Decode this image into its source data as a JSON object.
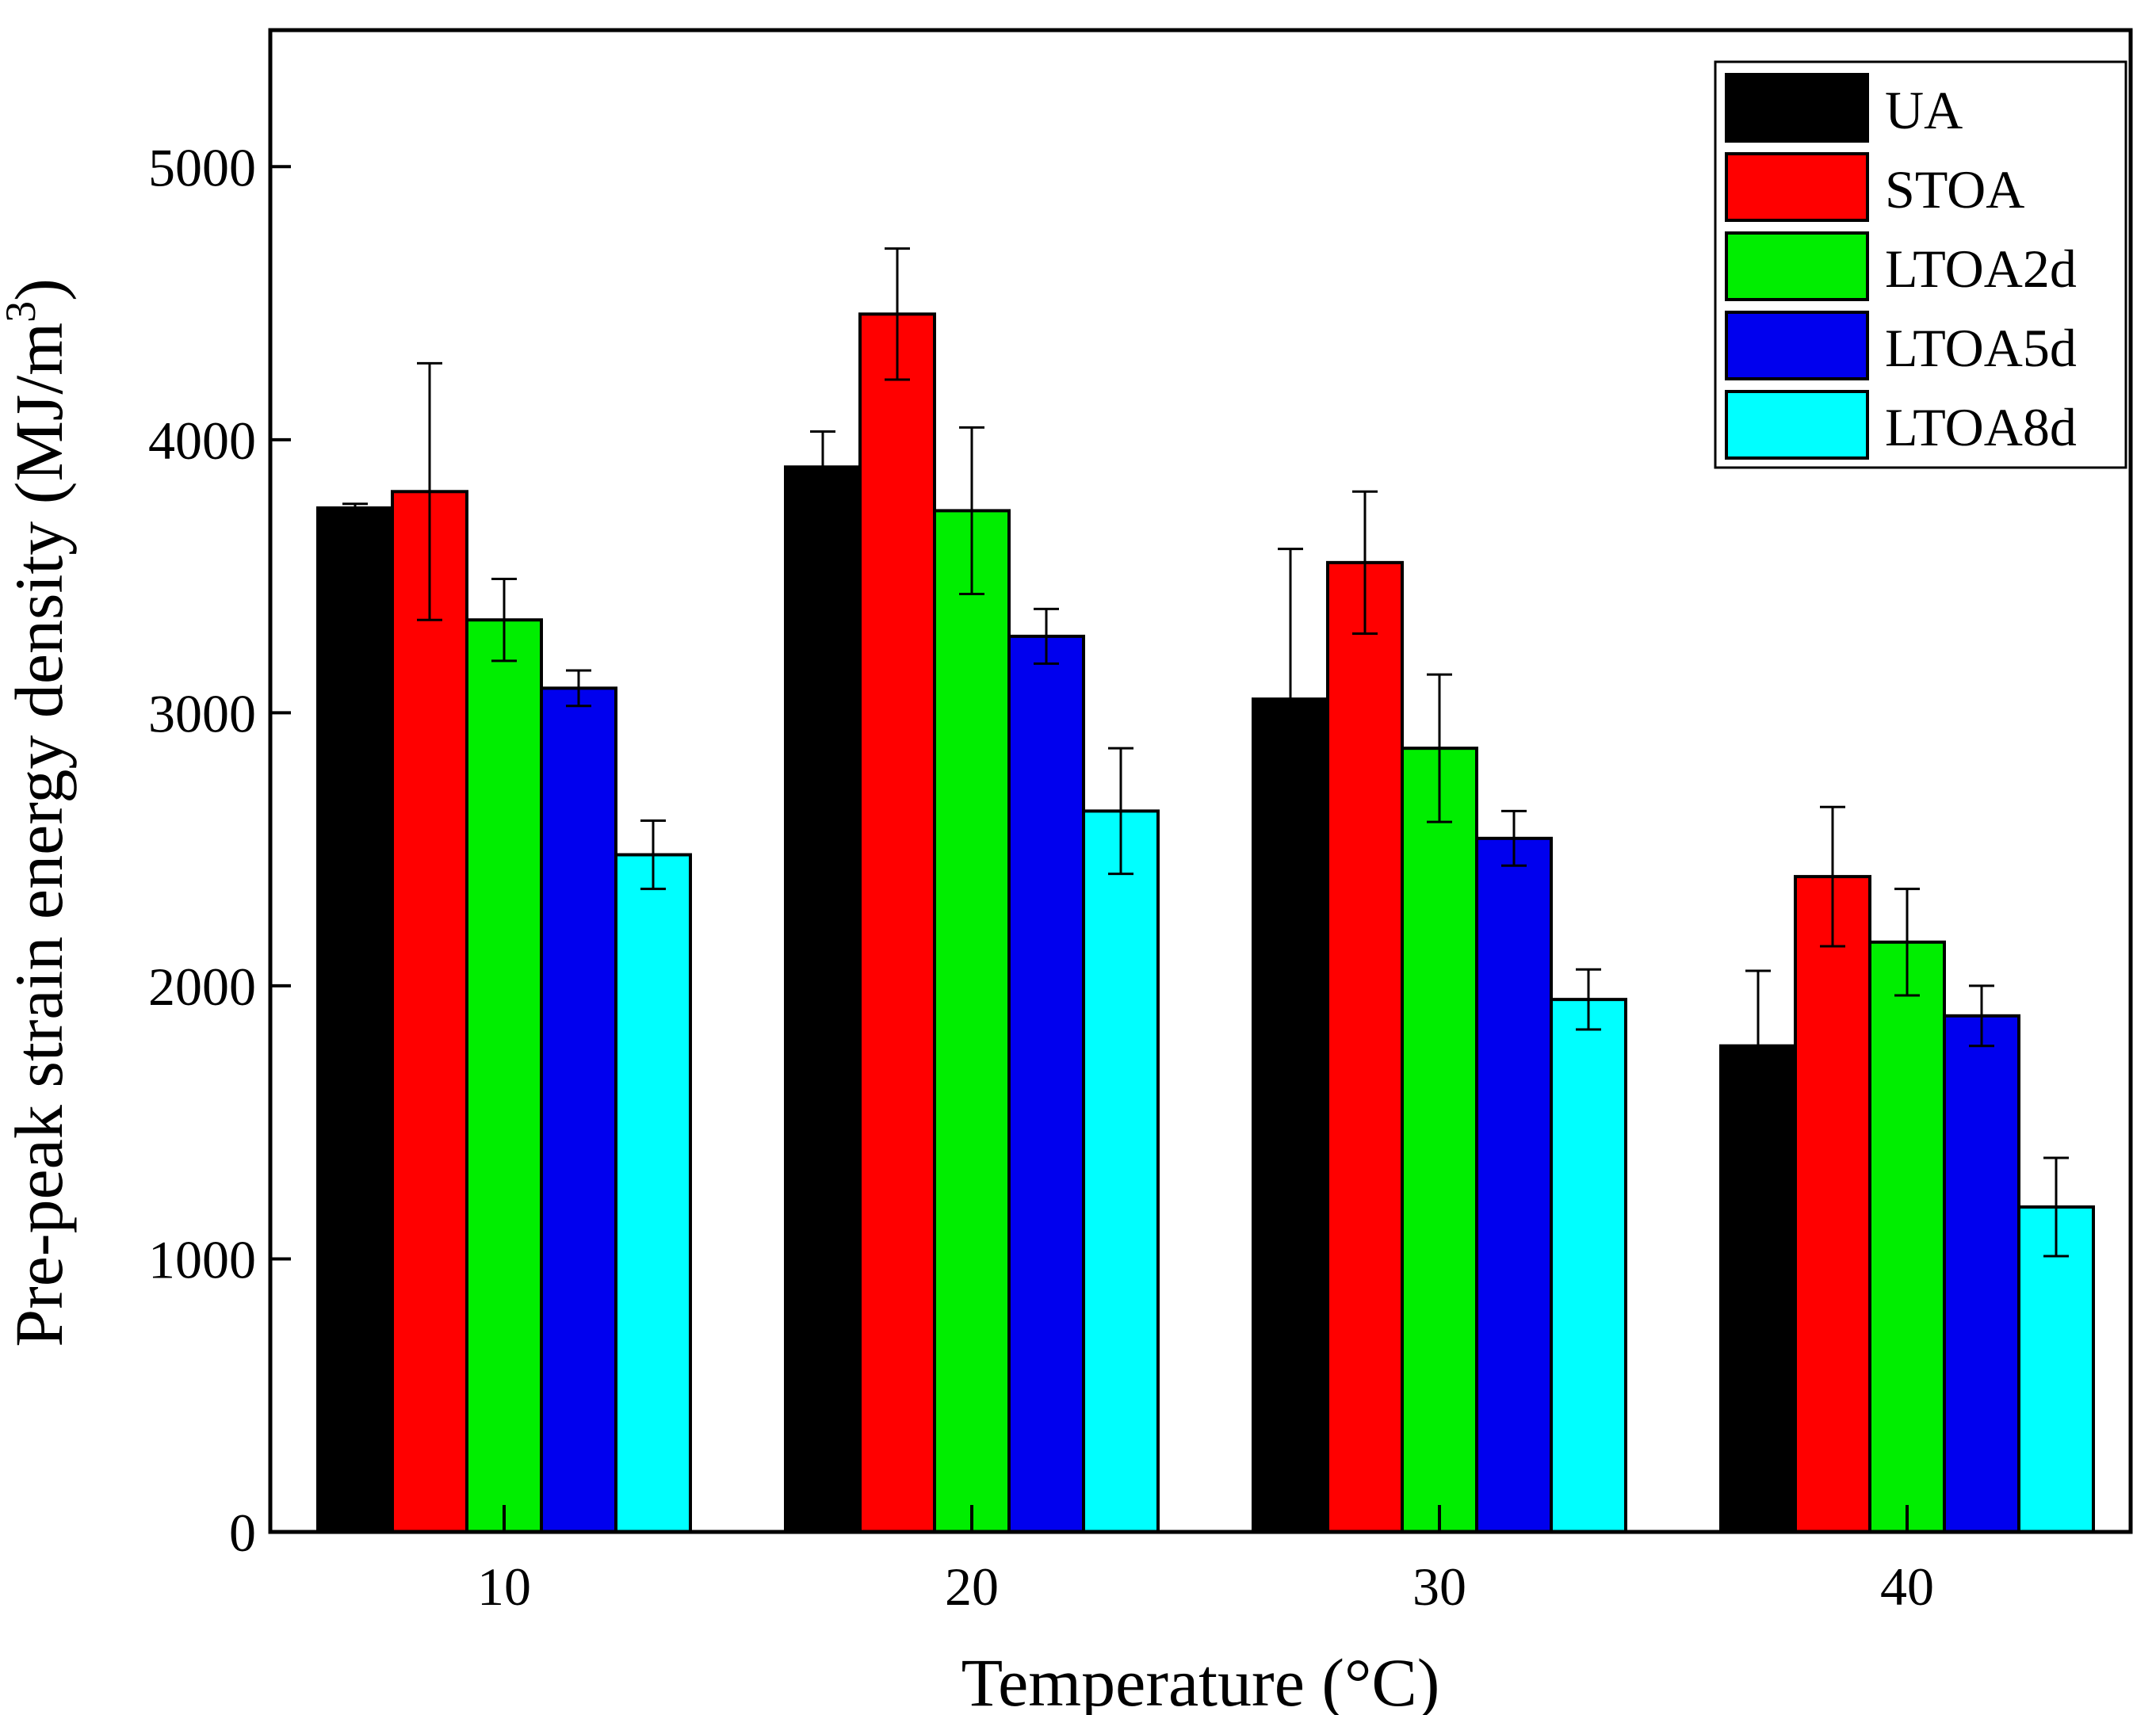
{
  "chart_data": {
    "type": "bar",
    "title": "",
    "xlabel": "Temperature (°C)",
    "ylabel": "Pre-peak strain energy density (MJ/m",
    "ylabel_superscript": "3",
    "ylabel_close": ")",
    "ylim": [
      0,
      5500
    ],
    "yticks": [
      0,
      1000,
      2000,
      3000,
      4000,
      5000
    ],
    "ytick_labels": [
      "0",
      "1000",
      "2000",
      "3000",
      "4000",
      "5000"
    ],
    "categories": [
      "10",
      "20",
      "30",
      "40"
    ],
    "legend_position": "top-right",
    "series": [
      {
        "name": "UA",
        "color": "#000000",
        "values": [
          3750,
          3900,
          3050,
          1780
        ],
        "errors": [
          15,
          130,
          550,
          275
        ]
      },
      {
        "name": "STOA",
        "color": "#ff0000",
        "values": [
          3810,
          4460,
          3550,
          2400
        ],
        "errors": [
          470,
          240,
          260,
          255
        ]
      },
      {
        "name": "LTOA2d",
        "color": "#00ee00",
        "values": [
          3340,
          3740,
          2870,
          2160
        ],
        "errors": [
          150,
          305,
          270,
          195
        ]
      },
      {
        "name": "LTOA5d",
        "color": "#0000ee",
        "values": [
          3090,
          3280,
          2540,
          1890
        ],
        "errors": [
          65,
          100,
          100,
          110
        ]
      },
      {
        "name": "LTOA8d",
        "color": "#00ffff",
        "values": [
          2480,
          2640,
          1950,
          1190
        ],
        "errors": [
          125,
          230,
          110,
          180
        ]
      }
    ]
  }
}
